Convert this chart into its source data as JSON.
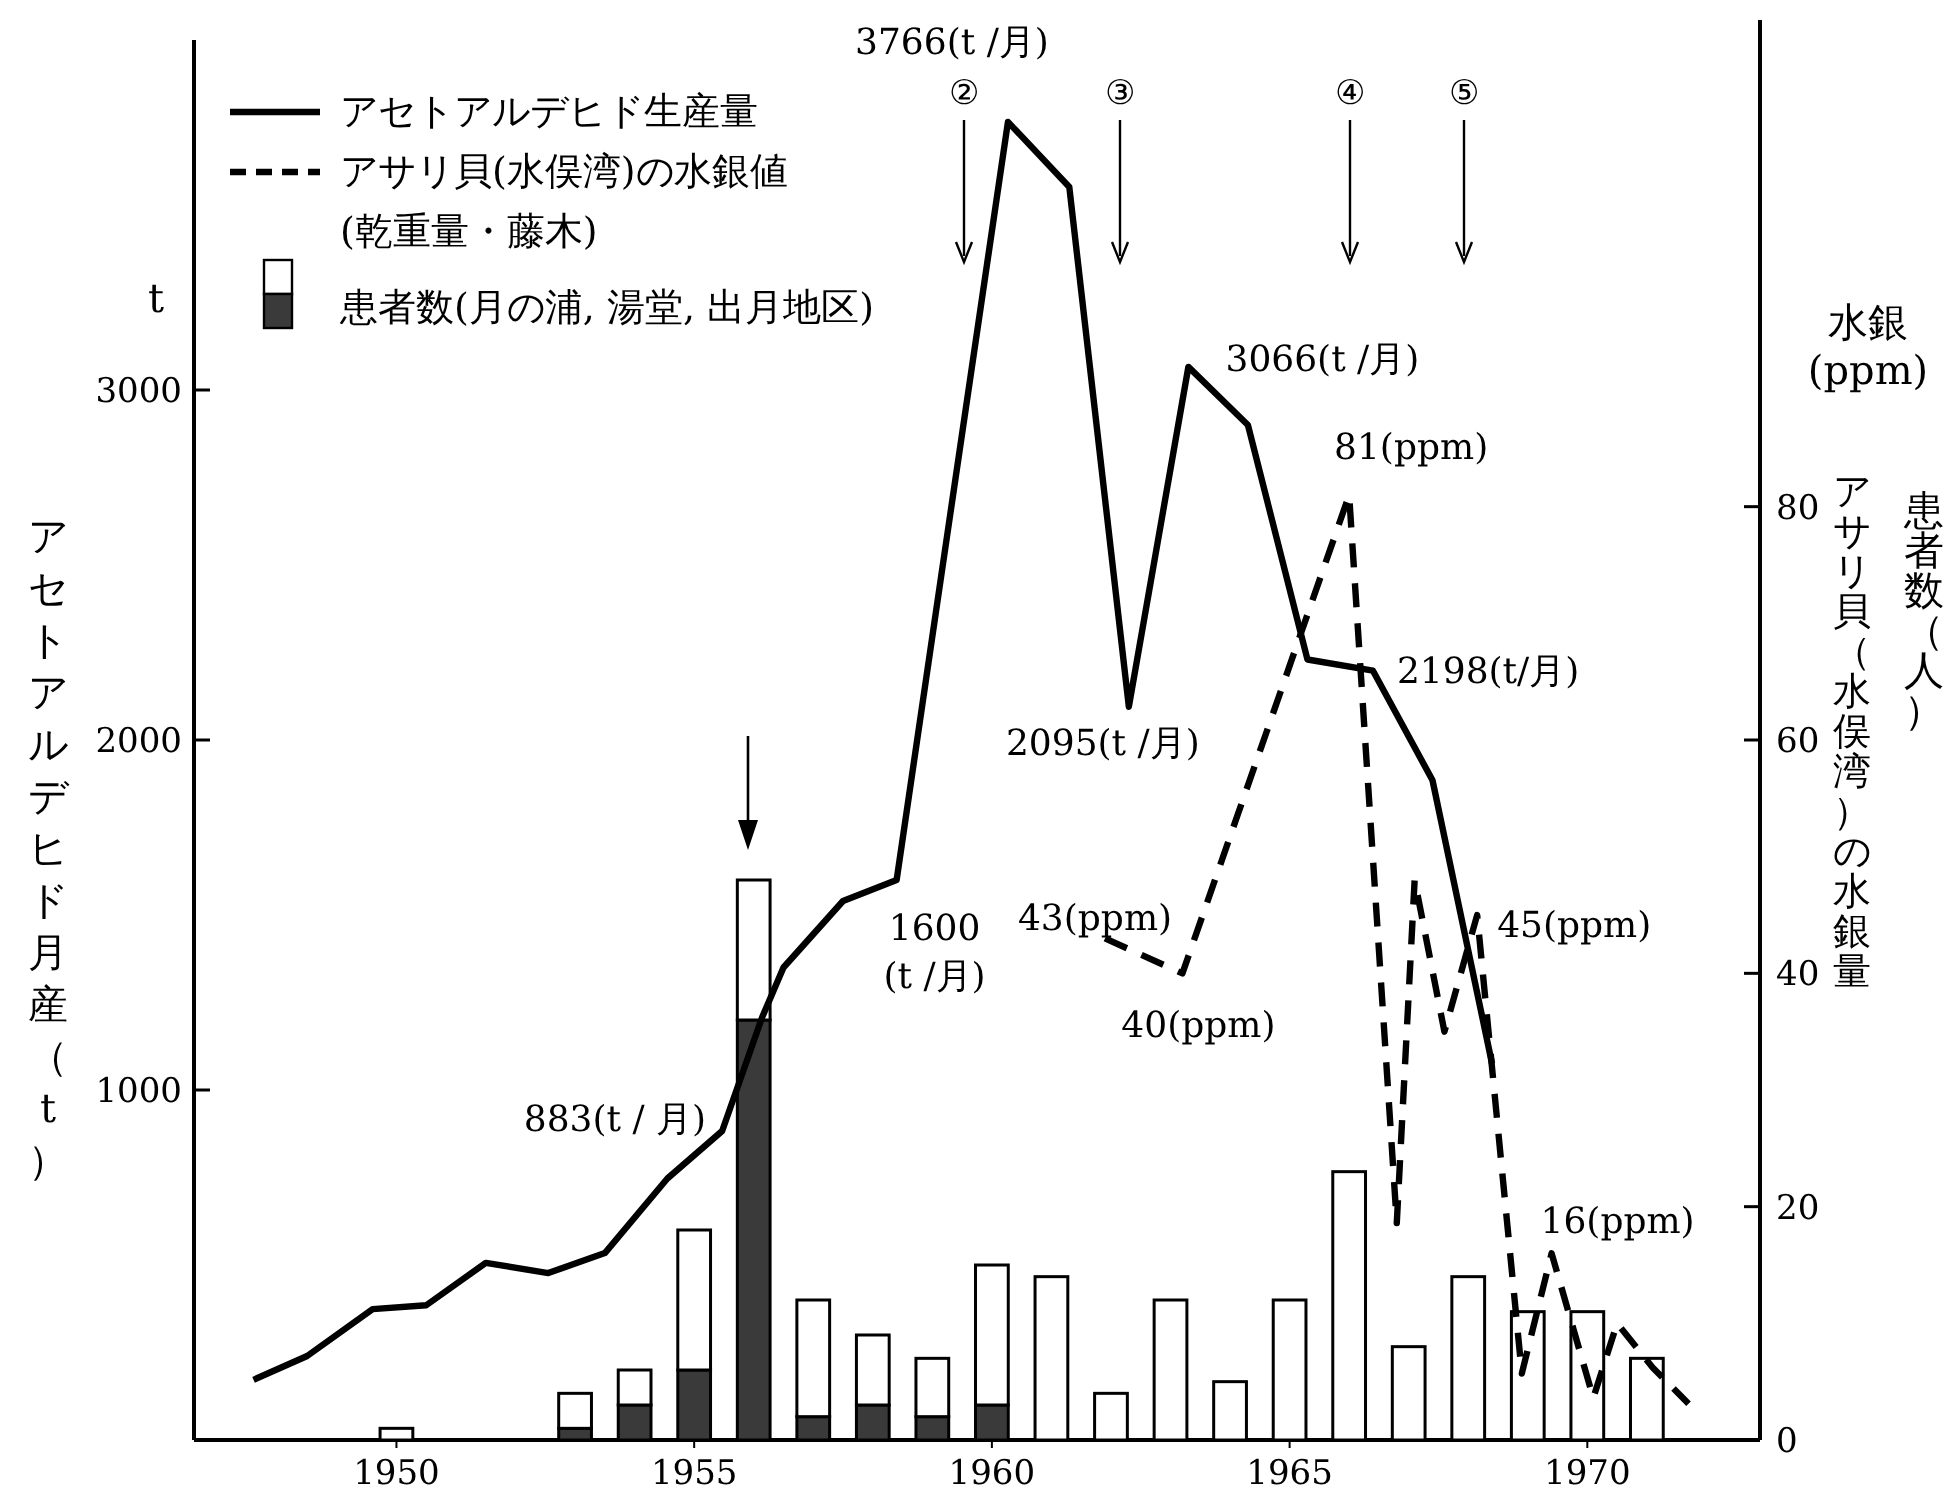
{
  "chart_data": {
    "type": "line",
    "stacked": true,
    "legend": "top left",
    "ylabel": "アセトアルデヒド月産（t）",
    "y2label": "アサリ貝（水俣湾）の水銀量",
    "xlim": [
      1946.6,
      1972.9
    ],
    "xticks": [
      1950,
      1955,
      1960,
      1965,
      1970
    ],
    "ylim": [
      0,
      4000
    ],
    "yticks": [
      1000,
      2000,
      3000
    ],
    "y2lim": [
      0,
      120
    ],
    "y2ticks": [
      0,
      20,
      40,
      60,
      80
    ],
    "series": [
      {
        "name": "アセトアルデヒド生産量",
        "line_style": "solid",
        "color": "#000000",
        "x": [
          1947.6,
          1948.5,
          1949.6,
          1950.5,
          1951.5,
          1952.55,
          1953.5,
          1954.55,
          1955.47,
          1956.14,
          1956.5,
          1957.5,
          1958.4,
          1959.3,
          1960.27,
          1961.3,
          1962.3,
          1963.3,
          1964.3,
          1965.3,
          1966.4,
          1967.4,
          1968.4
        ],
        "values": [
          172,
          240,
          374,
          385,
          506,
          477,
          534,
          747,
          883,
          1207,
          1350,
          1540,
          1600,
          2644,
          3766,
          3580,
          2095,
          3066,
          2900,
          2230,
          2198,
          1885,
          1075
        ]
      },
      {
        "name": "アサリ貝(水俣湾)の水銀値 (乾重量・藤木)",
        "line_style": "dashed",
        "axis": "y2",
        "color": "#000000",
        "x": [
          1961.9,
          1963.2,
          1966.0,
          1966.8,
          1967.1,
          1967.6,
          1968.15,
          1968.9,
          1969.4,
          1970.1,
          1970.5,
          1971.1,
          1971.7
        ],
        "values": [
          43,
          40,
          81,
          18.6,
          48,
          35,
          45,
          5.7,
          16,
          3.6,
          10,
          6.2,
          3.1
        ]
      },
      {
        "type": "bar",
        "axis": "y2",
        "color": "#3a3a3a",
        "x": [
          1950,
          1953,
          1954,
          1955,
          1956,
          1957,
          1958,
          1959,
          1960,
          1961,
          1962,
          1963,
          1964,
          1965,
          1966,
          1967,
          1968,
          1969,
          1970,
          1971
        ],
        "values": [
          0,
          1,
          3,
          6,
          36,
          2,
          3,
          2,
          3,
          0,
          0,
          0,
          0,
          0,
          0,
          0,
          0,
          0,
          0,
          0
        ]
      },
      {
        "name": "患者数(月の浦, 湯堂, 出月地区)",
        "type": "bar",
        "axis": "y2",
        "color": "#ffffff",
        "x": [
          1950,
          1953,
          1954,
          1955,
          1956,
          1957,
          1958,
          1959,
          1960,
          1961,
          1962,
          1963,
          1964,
          1965,
          1966,
          1967,
          1968,
          1969,
          1970,
          1971
        ],
        "values": [
          1,
          3,
          3,
          12,
          12,
          10,
          6,
          5,
          12,
          14,
          4,
          12,
          5,
          12,
          23,
          8,
          14,
          11,
          11,
          7
        ]
      }
    ],
    "annotations": [
      "t",
      "水銀",
      "(ppm)",
      "患者数（人）",
      {
        "text": "3766(t /月)",
        "x": 1960.27,
        "y": 3766
      },
      {
        "text": "3066(t /月)",
        "x": 1963.3,
        "y": 3066
      },
      {
        "text": "2095(t /月)",
        "x": 1962.3,
        "y": 2095
      },
      {
        "text": "2198(t/月)",
        "x": 1966.4,
        "y": 2198
      },
      {
        "text": "1600(t /月)",
        "x": 1958.4,
        "y": 1600
      },
      {
        "text": "883(t / 月)",
        "x": 1955.47,
        "y": 883
      },
      {
        "text": "81(ppm)",
        "x": 1966.0,
        "y": 2700
      },
      {
        "text": "43(ppm)",
        "x": 1961.9,
        "y": 1433
      },
      {
        "text": "40(ppm)",
        "x": 1963.2,
        "y": 1333
      },
      {
        "text": "45(ppm)",
        "x": 1968.15,
        "y": 1500
      },
      {
        "text": "16(ppm)",
        "x": 1969.4,
        "y": 533
      },
      "②",
      "③",
      "④",
      "⑤"
    ]
  }
}
